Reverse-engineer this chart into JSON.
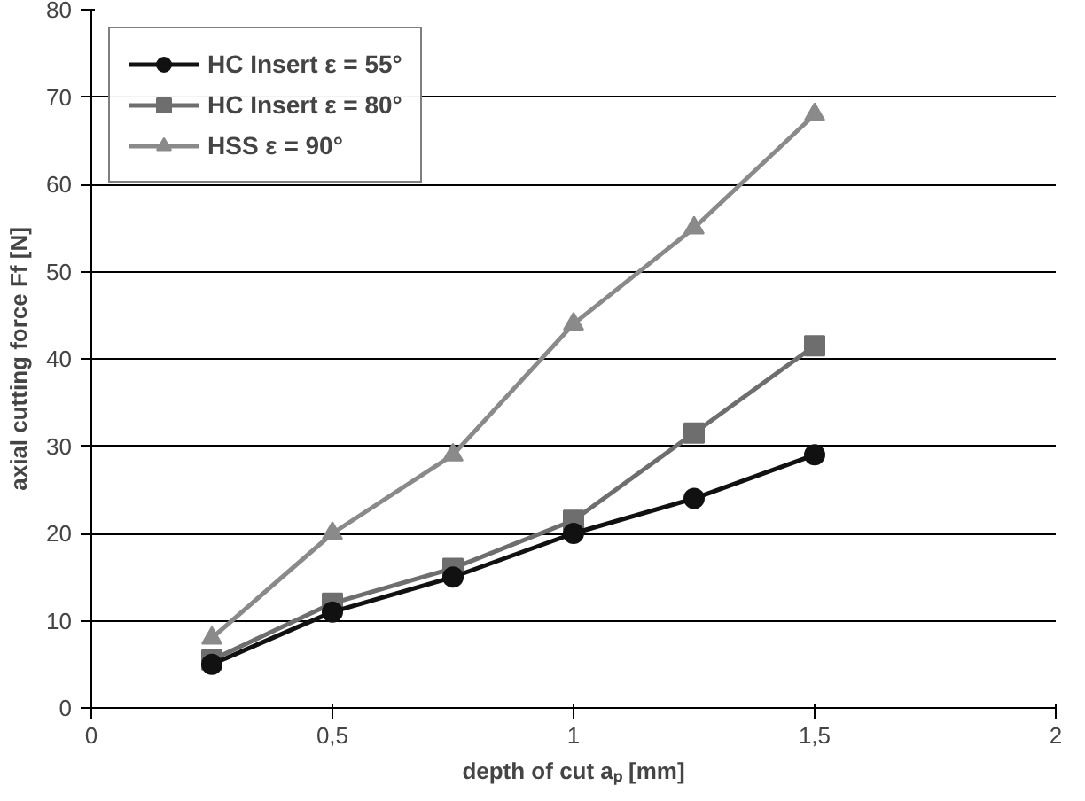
{
  "chart_data": {
    "type": "line",
    "xlabel": "depth of cut aₚ [mm]",
    "ylabel": "axial cutting force Ff [N]",
    "x": [
      0.25,
      0.5,
      0.75,
      1.0,
      1.25,
      1.5
    ],
    "series": [
      {
        "name": "HC Insert ε = 55°",
        "color": "#111111",
        "marker": "circle",
        "values": [
          5,
          11,
          15,
          20,
          24,
          29
        ]
      },
      {
        "name": "HC Insert ε = 80°",
        "color": "#6e6e6e",
        "marker": "square",
        "values": [
          5.5,
          12,
          16,
          21.5,
          31.5,
          41.5
        ]
      },
      {
        "name": "HSS ε = 90°",
        "color": "#8a8a8a",
        "marker": "triangle",
        "values": [
          8,
          20,
          29,
          44,
          55,
          68
        ]
      }
    ],
    "xlim": [
      0,
      2
    ],
    "xticks": [
      0,
      {
        "value": 0.5,
        "label": "0,5"
      },
      1,
      {
        "value": 1.5,
        "label": "1,5"
      },
      2
    ],
    "ylim": [
      0,
      80
    ],
    "yticks": [
      0,
      10,
      20,
      30,
      40,
      50,
      60,
      70,
      80
    ],
    "grid": "y",
    "legend": "top left",
    "line_style": "solid"
  }
}
